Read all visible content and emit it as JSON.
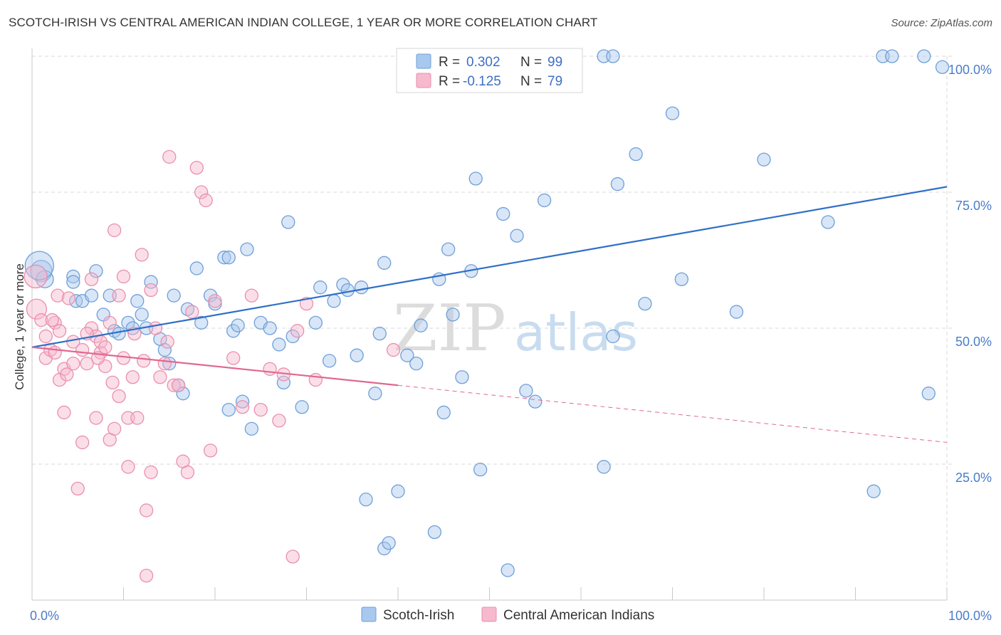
{
  "title": "SCOTCH-IRISH VS CENTRAL AMERICAN INDIAN COLLEGE, 1 YEAR OR MORE CORRELATION CHART",
  "source": "Source: ZipAtlas.com",
  "watermark": {
    "zip": "ZIP",
    "atlas": "atlas"
  },
  "colors": {
    "blue_fill": "#a9c8ee",
    "blue_stroke": "#6f9fd8",
    "blue_line": "#2f6fc7",
    "pink_fill": "#f6b9cd",
    "pink_stroke": "#ea8fae",
    "pink_line": "#e0688f",
    "grid": "#d9d9d9",
    "tick_text": "#4a7cc9"
  },
  "legend": {
    "r_label": "R =",
    "n_label": "N =",
    "rows": [
      {
        "series": "Scotch-Irish",
        "r": "0.302",
        "n": "99"
      },
      {
        "series": "Central American Indians",
        "r": "-0.125",
        "n": "79"
      }
    ]
  },
  "chart_data": {
    "type": "scatter",
    "title": "SCOTCH-IRISH VS CENTRAL AMERICAN INDIAN COLLEGE, 1 YEAR OR MORE CORRELATION CHART",
    "xlabel": "",
    "ylabel": "College, 1 year or more",
    "xlim": [
      0,
      100
    ],
    "ylim": [
      0,
      100
    ],
    "x_tick_labels": [
      "0.0%",
      "100.0%"
    ],
    "y_ticks": [
      25,
      50,
      75,
      100
    ],
    "y_tick_labels": [
      "25.0%",
      "50.0%",
      "75.0%",
      "100.0%"
    ],
    "grid": true,
    "legend_position": "top-center",
    "series": [
      {
        "name": "Scotch-Irish",
        "color": "#a9c8ee",
        "trend": {
          "x": [
            0,
            100
          ],
          "y": [
            46.5,
            76.0
          ],
          "dashed_from": null
        },
        "points": [
          [
            1.0,
            60.5,
            15
          ],
          [
            1.4,
            59.0,
            12
          ],
          [
            0.8,
            61.5,
            20
          ],
          [
            4.5,
            59.5,
            9
          ],
          [
            4.8,
            55.0,
            9
          ],
          [
            5.5,
            55.0,
            9
          ],
          [
            4.5,
            58.5,
            9
          ],
          [
            6.5,
            56.0,
            9
          ],
          [
            7.0,
            60.5,
            9
          ],
          [
            7.8,
            52.5,
            9
          ],
          [
            9.0,
            49.5,
            9
          ],
          [
            9.5,
            49.0,
            9
          ],
          [
            8.5,
            56.0,
            9
          ],
          [
            10.5,
            51.0,
            9
          ],
          [
            11.0,
            50.0,
            9
          ],
          [
            11.5,
            55.0,
            9
          ],
          [
            12.0,
            52.5,
            9
          ],
          [
            12.5,
            50.0,
            9
          ],
          [
            13.0,
            58.5,
            9
          ],
          [
            14.0,
            48.0,
            9
          ],
          [
            14.5,
            46.0,
            9
          ],
          [
            15.0,
            43.5,
            9
          ],
          [
            15.5,
            56.0,
            9
          ],
          [
            16.0,
            39.5,
            9
          ],
          [
            16.5,
            38.0,
            9
          ],
          [
            17.0,
            53.5,
            9
          ],
          [
            18.0,
            61.0,
            9
          ],
          [
            18.5,
            51.0,
            9
          ],
          [
            19.5,
            56.0,
            9
          ],
          [
            20.0,
            54.5,
            9
          ],
          [
            21.0,
            63.0,
            9
          ],
          [
            21.5,
            63.0,
            9
          ],
          [
            22.0,
            49.5,
            9
          ],
          [
            22.5,
            50.5,
            9
          ],
          [
            23.0,
            36.5,
            9
          ],
          [
            23.5,
            64.5,
            9
          ],
          [
            24.0,
            31.5,
            9
          ],
          [
            25.0,
            51.0,
            9
          ],
          [
            26.0,
            50.0,
            9
          ],
          [
            27.0,
            47.0,
            9
          ],
          [
            27.5,
            40.0,
            9
          ],
          [
            28.0,
            69.5,
            9
          ],
          [
            28.5,
            48.5,
            9
          ],
          [
            29.5,
            35.5,
            9
          ],
          [
            31.0,
            51.0,
            9
          ],
          [
            31.5,
            57.5,
            9
          ],
          [
            32.5,
            44.0,
            9
          ],
          [
            33.0,
            55.0,
            9
          ],
          [
            34.0,
            58.0,
            9
          ],
          [
            34.5,
            57.0,
            9
          ],
          [
            35.5,
            45.0,
            9
          ],
          [
            36.0,
            57.5,
            9
          ],
          [
            36.5,
            18.5,
            9
          ],
          [
            37.5,
            38.0,
            9
          ],
          [
            38.0,
            49.0,
            9
          ],
          [
            38.5,
            62.0,
            9
          ],
          [
            38.5,
            9.5,
            9
          ],
          [
            39.0,
            10.5,
            9
          ],
          [
            40.0,
            20.0,
            9
          ],
          [
            41.0,
            45.0,
            9
          ],
          [
            42.0,
            43.5,
            9
          ],
          [
            42.5,
            50.5,
            9
          ],
          [
            44.0,
            12.5,
            9
          ],
          [
            44.5,
            59.0,
            9
          ],
          [
            45.0,
            34.5,
            9
          ],
          [
            45.5,
            64.5,
            9
          ],
          [
            46.0,
            52.5,
            9
          ],
          [
            47.0,
            41.0,
            9
          ],
          [
            48.0,
            60.5,
            9
          ],
          [
            48.5,
            77.5,
            9
          ],
          [
            49.0,
            24.0,
            9
          ],
          [
            50.0,
            100.0,
            9
          ],
          [
            51.0,
            100.0,
            9
          ],
          [
            51.5,
            71.0,
            9
          ],
          [
            52.0,
            5.5,
            9
          ],
          [
            53.0,
            67.0,
            9
          ],
          [
            54.0,
            38.5,
            9
          ],
          [
            55.0,
            36.5,
            9
          ],
          [
            56.0,
            73.5,
            9
          ],
          [
            62.5,
            100.0,
            9
          ],
          [
            62.5,
            24.5,
            9
          ],
          [
            63.5,
            100.0,
            9
          ],
          [
            63.5,
            48.5,
            9
          ],
          [
            64.0,
            76.5,
            9
          ],
          [
            66.0,
            82.0,
            9
          ],
          [
            67.0,
            54.5,
            9
          ],
          [
            70.0,
            89.5,
            9
          ],
          [
            71.0,
            59.0,
            9
          ],
          [
            77.0,
            53.0,
            9
          ],
          [
            80.0,
            81.0,
            9
          ],
          [
            87.0,
            69.5,
            9
          ],
          [
            93.0,
            100.0,
            9
          ],
          [
            94.0,
            100.0,
            9
          ],
          [
            97.5,
            100.0,
            9
          ],
          [
            98.0,
            38.0,
            9
          ],
          [
            92.0,
            20.0,
            9
          ],
          [
            99.5,
            98.0,
            9
          ],
          [
            21.5,
            35.0,
            9
          ]
        ]
      },
      {
        "name": "Central American Indians",
        "color": "#f6b9cd",
        "trend": {
          "x": [
            0,
            100
          ],
          "y": [
            46.5,
            29.0
          ],
          "dashed_from": 40
        },
        "points": [
          [
            0.4,
            59.5,
            16
          ],
          [
            0.5,
            53.5,
            14
          ],
          [
            1.0,
            51.5,
            9
          ],
          [
            1.5,
            48.5,
            9
          ],
          [
            1.5,
            44.5,
            9
          ],
          [
            2.0,
            46.0,
            9
          ],
          [
            2.5,
            45.5,
            9
          ],
          [
            2.5,
            51.0,
            9
          ],
          [
            3.0,
            49.5,
            9
          ],
          [
            2.8,
            56.0,
            9
          ],
          [
            3.0,
            40.5,
            9
          ],
          [
            3.5,
            42.5,
            9
          ],
          [
            3.5,
            34.5,
            9
          ],
          [
            4.0,
            55.5,
            9
          ],
          [
            4.5,
            47.5,
            9
          ],
          [
            4.5,
            43.5,
            9
          ],
          [
            5.0,
            20.5,
            9
          ],
          [
            5.5,
            29.0,
            9
          ],
          [
            5.5,
            46.0,
            9
          ],
          [
            6.0,
            43.5,
            9
          ],
          [
            6.5,
            50.0,
            9
          ],
          [
            6.5,
            59.0,
            9
          ],
          [
            7.0,
            48.5,
            9
          ],
          [
            7.0,
            33.5,
            9
          ],
          [
            7.5,
            45.5,
            9
          ],
          [
            7.5,
            47.5,
            9
          ],
          [
            8.0,
            46.5,
            9
          ],
          [
            8.0,
            43.0,
            9
          ],
          [
            8.5,
            29.5,
            9
          ],
          [
            8.5,
            51.0,
            9
          ],
          [
            9.0,
            68.0,
            9
          ],
          [
            9.0,
            31.5,
            9
          ],
          [
            9.5,
            37.5,
            9
          ],
          [
            9.5,
            56.0,
            9
          ],
          [
            10.0,
            44.5,
            9
          ],
          [
            10.0,
            59.5,
            9
          ],
          [
            10.5,
            33.5,
            9
          ],
          [
            10.5,
            24.5,
            9
          ],
          [
            11.0,
            41.0,
            9
          ],
          [
            11.5,
            33.5,
            9
          ],
          [
            12.0,
            63.5,
            9
          ],
          [
            12.5,
            16.5,
            9
          ],
          [
            12.5,
            4.5,
            9
          ],
          [
            13.0,
            23.5,
            9
          ],
          [
            13.0,
            57.0,
            9
          ],
          [
            13.5,
            50.0,
            9
          ],
          [
            14.0,
            41.0,
            9
          ],
          [
            14.5,
            43.5,
            9
          ],
          [
            15.0,
            81.5,
            9
          ],
          [
            15.5,
            39.5,
            9
          ],
          [
            16.0,
            39.5,
            9
          ],
          [
            16.5,
            25.5,
            9
          ],
          [
            17.0,
            23.5,
            9
          ],
          [
            17.5,
            53.0,
            9
          ],
          [
            18.0,
            79.5,
            9
          ],
          [
            18.5,
            75.0,
            9
          ],
          [
            19.0,
            73.5,
            9
          ],
          [
            19.5,
            27.5,
            9
          ],
          [
            20.0,
            55.0,
            9
          ],
          [
            22.0,
            44.5,
            9
          ],
          [
            23.0,
            35.5,
            9
          ],
          [
            24.0,
            56.0,
            9
          ],
          [
            25.0,
            35.0,
            9
          ],
          [
            26.0,
            42.5,
            9
          ],
          [
            27.0,
            33.0,
            9
          ],
          [
            27.5,
            41.5,
            9
          ],
          [
            28.5,
            8.0,
            9
          ],
          [
            29.0,
            49.5,
            9
          ],
          [
            30.0,
            54.5,
            9
          ],
          [
            31.0,
            40.5,
            9
          ],
          [
            39.5,
            46.0,
            9
          ],
          [
            2.2,
            51.5,
            9
          ],
          [
            3.8,
            41.5,
            9
          ],
          [
            6.0,
            49.0,
            9
          ],
          [
            7.2,
            44.5,
            9
          ],
          [
            8.8,
            40.0,
            9
          ],
          [
            11.2,
            49.0,
            9
          ],
          [
            12.2,
            44.0,
            9
          ],
          [
            14.8,
            47.5,
            9
          ]
        ]
      }
    ]
  }
}
